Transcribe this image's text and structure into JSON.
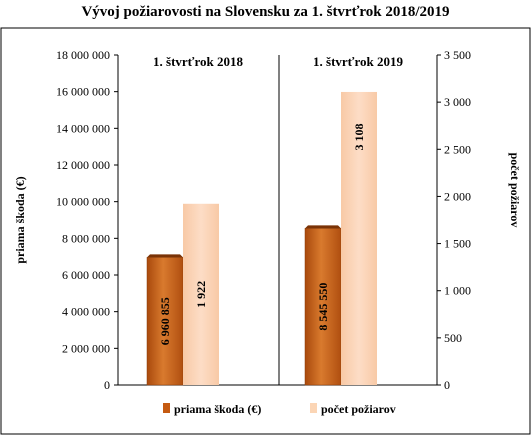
{
  "chart_data": {
    "type": "bar",
    "title": "Vývoj požiarovosti na Slovensku za 1. štvrťrok 2018/2019",
    "categories": [
      "1. štvrťrok 2018",
      "1. štvrťrok 2019"
    ],
    "series": [
      {
        "name": "priama škoda (€)",
        "axis": "left",
        "values": [
          6960855,
          8545550
        ],
        "labels": [
          "6 960 855",
          "8 545 550"
        ],
        "color": "#c55a11"
      },
      {
        "name": "počet požiarov",
        "axis": "right",
        "values": [
          1922,
          3108
        ],
        "labels": [
          "1 922",
          "3 108"
        ],
        "color": "#fbd5b5"
      }
    ],
    "ylabel": "priama škoda (€)",
    "ylim": [
      0,
      18000000
    ],
    "yticks": [
      "0",
      "2 000 000",
      "4 000 000",
      "6 000 000",
      "8 000 000",
      "10 000 000",
      "12 000 000",
      "14 000 000",
      "16 000 000",
      "18 000 000"
    ],
    "y2label": "počet požiarov",
    "y2lim": [
      0,
      3500
    ],
    "y2ticks": [
      "0",
      "500",
      "1 000",
      "1 500",
      "2 000",
      "2 500",
      "3 000",
      "3 500"
    ],
    "grid": false,
    "legend": "bottom"
  }
}
